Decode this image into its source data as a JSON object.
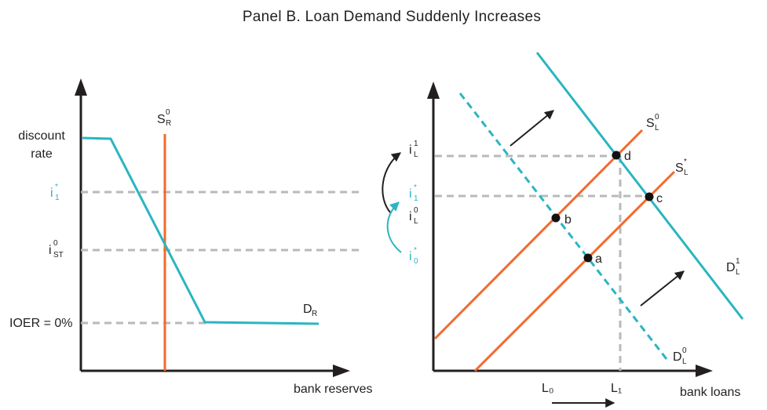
{
  "title": "Panel B. Loan Demand Suddenly Increases",
  "left_panel": {
    "x_axis_label": "bank reserves",
    "y_labels": {
      "discount_rate_line1": "discount",
      "discount_rate_line2": "rate",
      "i1_star": {
        "base": "i",
        "sup": "*",
        "sub": "1"
      },
      "i_st0": {
        "base": "i",
        "sup": "0",
        "sub": "ST"
      },
      "ioer": "IOER = 0%"
    },
    "supply_label": {
      "base": "S",
      "sup": "0",
      "sub": "R"
    },
    "demand_label": {
      "base": "D",
      "sub": "R"
    }
  },
  "right_panel": {
    "x_axis_label": "bank loans",
    "x_labels": {
      "L0": "L₀",
      "L1": "L₁"
    },
    "y_labels": {
      "iL1": {
        "base": "i",
        "sup": "1",
        "sub": "L"
      },
      "i1_star": {
        "base": "i",
        "sup": "*",
        "sub": "1"
      },
      "iL0": {
        "base": "i",
        "sup": "0",
        "sub": "L"
      },
      "i0_star": {
        "base": "i",
        "sup": "*",
        "sub": "0"
      }
    },
    "curve_labels": {
      "SL0": {
        "base": "S",
        "sup": "0",
        "sub": "L"
      },
      "SLstar": {
        "base": "S",
        "sup": "*",
        "sub": "L"
      },
      "DL1": {
        "base": "D",
        "sup": "1",
        "sub": "L"
      },
      "DL0": {
        "base": "D",
        "sup": "0",
        "sub": "L"
      }
    },
    "points": [
      "a",
      "b",
      "c",
      "d"
    ]
  },
  "colors": {
    "supply": "#f26a2e",
    "demand": "#2ab5c1",
    "reference_lines": "#b9b9b9",
    "axes": "#231f20",
    "teal_text": "#2ab5c1"
  }
}
